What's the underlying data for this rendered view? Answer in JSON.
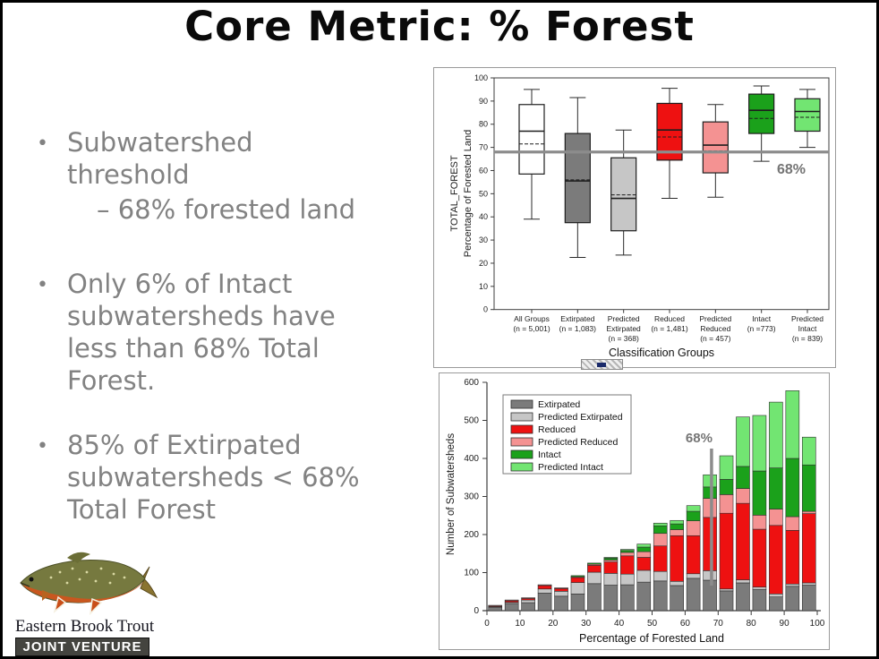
{
  "slide": {
    "title": "Core Metric: % Forest",
    "bullets": [
      {
        "text": "Subwatershed threshold",
        "sub": "–  68% forested land"
      },
      {
        "text": "Only 6% of Intact subwatersheds have less than 68% Total Forest."
      },
      {
        "text": "85% of Extirpated subwatersheds < 68% Total Forest"
      }
    ],
    "logo": {
      "line1": "Eastern Brook Trout",
      "line2": "JOINT VENTURE"
    }
  },
  "chart_data": [
    {
      "type": "box",
      "xlabel": "Classification Groups",
      "ylabel_lines": [
        "TOTAL_FOREST",
        "Percentage of Forested Land"
      ],
      "ylim": [
        0,
        100
      ],
      "yticks": [
        0,
        10,
        20,
        30,
        40,
        50,
        60,
        70,
        80,
        90,
        100
      ],
      "ref_line": {
        "value": 68,
        "label": "68%",
        "color": "#8c8c8c"
      },
      "groups": [
        {
          "label_lines": [
            "All Groups"
          ],
          "n_label": "(n = 5,001)",
          "fill": "#ffffff",
          "low": 39,
          "q1": 58.5,
          "median": 77,
          "mean": 71.5,
          "q3": 88.5,
          "high": 95
        },
        {
          "label_lines": [
            "Extirpated"
          ],
          "n_label": "(n = 1,083)",
          "fill": "#7b7b7b",
          "low": 22.5,
          "q1": 37.5,
          "median": 55.5,
          "mean": 56,
          "q3": 76,
          "high": 91.5
        },
        {
          "label_lines": [
            "Predicted",
            "Extirpated"
          ],
          "n_label": "(n = 368)",
          "fill": "#c6c6c6",
          "low": 23.5,
          "q1": 34,
          "median": 48,
          "mean": 49.5,
          "q3": 65.5,
          "high": 77.5
        },
        {
          "label_lines": [
            "Reduced"
          ],
          "n_label": "(n = 1,481)",
          "fill": "#ee1111",
          "low": 48,
          "q1": 64.5,
          "median": 77.5,
          "mean": 74.5,
          "q3": 89,
          "high": 95.5
        },
        {
          "label_lines": [
            "Predicted",
            "Reduced"
          ],
          "n_label": "(n = 457)",
          "fill": "#f49292",
          "low": 48.5,
          "q1": 59,
          "median": 71,
          "mean": 68.5,
          "q3": 81,
          "high": 88.5
        },
        {
          "label_lines": [
            "Intact"
          ],
          "n_label": "(n =773)",
          "fill": "#1ba11b",
          "low": 64,
          "q1": 76,
          "median": 86,
          "mean": 82.5,
          "q3": 93,
          "high": 96.5
        },
        {
          "label_lines": [
            "Predicted",
            "Intact"
          ],
          "n_label": "(n = 839)",
          "fill": "#72e572",
          "low": 70,
          "q1": 77,
          "median": 85.5,
          "mean": 83,
          "q3": 91,
          "high": 95
        }
      ]
    },
    {
      "type": "stacked-bar",
      "xlabel": "Percentage of Forested Land",
      "ylabel": "Number of Subwatersheds",
      "xlim": [
        0,
        100
      ],
      "ylim": [
        0,
        600
      ],
      "xticks": [
        0,
        10,
        20,
        30,
        40,
        50,
        60,
        70,
        80,
        90,
        100
      ],
      "yticks": [
        0,
        100,
        200,
        300,
        400,
        500,
        600
      ],
      "annotation": {
        "value": 68,
        "label": "68%",
        "color": "#8c8c8c"
      },
      "legend_position": "top-left",
      "bin_centers": [
        2.5,
        7.5,
        12.5,
        17.5,
        22.5,
        27.5,
        32.5,
        37.5,
        42.5,
        47.5,
        52.5,
        57.5,
        62.5,
        67.5,
        72.5,
        77.5,
        82.5,
        87.5,
        92.5,
        97.5
      ],
      "series": [
        {
          "name": "Extirpated",
          "color": "#7b7b7b",
          "values": [
            8,
            19,
            21,
            46,
            38,
            44,
            71,
            67,
            68,
            75,
            78,
            66,
            85,
            80,
            52,
            73,
            56,
            36,
            64,
            67
          ]
        },
        {
          "name": "Predicted Extirpated",
          "color": "#c6c6c6",
          "values": [
            2,
            3,
            7,
            11,
            13,
            30,
            30,
            31,
            28,
            31,
            25,
            11,
            12,
            25,
            5,
            8,
            6,
            8,
            6,
            6
          ]
        },
        {
          "name": "Reduced",
          "color": "#ee1111",
          "values": [
            2,
            4,
            4,
            9,
            7,
            13,
            18,
            30,
            48,
            34,
            67,
            120,
            100,
            140,
            199,
            201,
            152,
            180,
            141,
            182
          ]
        },
        {
          "name": "Predicted Reduced",
          "color": "#f49292",
          "values": [
            2,
            2,
            2,
            2,
            2,
            2,
            3,
            5,
            9,
            15,
            33,
            16,
            39,
            50,
            49,
            39,
            37,
            43,
            36,
            6
          ]
        },
        {
          "name": "Intact",
          "color": "#1ba11b",
          "values": [
            0,
            0,
            0,
            0,
            0,
            3,
            3,
            5,
            5,
            12,
            20,
            15,
            25,
            30,
            40,
            58,
            116,
            108,
            153,
            122
          ]
        },
        {
          "name": "Predicted Intact",
          "color": "#72e572",
          "values": [
            0,
            0,
            0,
            0,
            0,
            0,
            0,
            2,
            3,
            8,
            7,
            9,
            15,
            32,
            62,
            130,
            146,
            173,
            178,
            73
          ]
        }
      ]
    }
  ]
}
